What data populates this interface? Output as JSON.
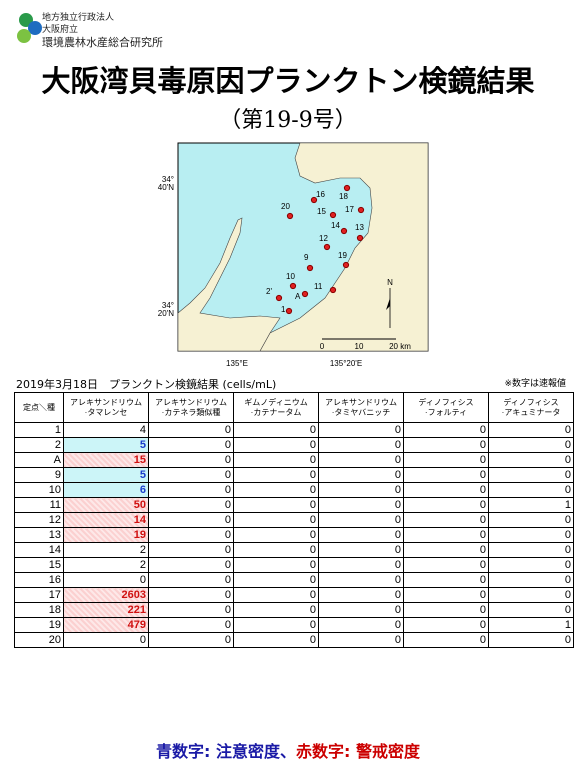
{
  "header": {
    "org": [
      "地方独立行政法人",
      "大阪府立",
      "環境農林水産総合研究所"
    ],
    "title": "大阪湾貝毒原因プランクトン検鏡結果",
    "subtitle": "（第19-9号）"
  },
  "map": {
    "stations": [
      "1",
      "2'",
      "A",
      "10",
      "11",
      "9",
      "19",
      "12",
      "14",
      "13",
      "15",
      "17",
      "18",
      "16",
      "20"
    ],
    "lat_labels": [
      [
        "34°",
        "40'N"
      ],
      [
        "34°",
        "20'N"
      ]
    ],
    "lon_labels": [
      "135°E",
      "135°20'E"
    ],
    "scale": [
      "0",
      "10",
      "20 km"
    ],
    "north": "N"
  },
  "table": {
    "caption": "2019年3月18日　プランクトン検鏡結果 (cells/mL)",
    "note": "※数字は速報値",
    "corner": "定点＼種",
    "headers": [
      [
        "アレキサンドリウム",
        "·タマレンセ"
      ],
      [
        "アレキサンドリウム",
        "·カテネラ類似種"
      ],
      [
        "ギムノディニウム",
        "·カテナータム"
      ],
      [
        "アレキサンドリウム",
        "·タミヤバニッチ"
      ],
      [
        "ディノフィシス",
        "·フォルティ"
      ],
      [
        "ディノフィシス",
        "·アキュミナータ"
      ]
    ],
    "rows": [
      [
        "1",
        4,
        0,
        0,
        0,
        0,
        0
      ],
      [
        "2",
        5,
        0,
        0,
        0,
        0,
        0
      ],
      [
        "A",
        15,
        0,
        0,
        0,
        0,
        0
      ],
      [
        "9",
        5,
        0,
        0,
        0,
        0,
        0
      ],
      [
        "10",
        6,
        0,
        0,
        0,
        0,
        0
      ],
      [
        "11",
        50,
        0,
        0,
        0,
        0,
        1
      ],
      [
        "12",
        14,
        0,
        0,
        0,
        0,
        0
      ],
      [
        "13",
        19,
        0,
        0,
        0,
        0,
        0
      ],
      [
        "14",
        2,
        0,
        0,
        0,
        0,
        0
      ],
      [
        "15",
        2,
        0,
        0,
        0,
        0,
        0
      ],
      [
        "16",
        0,
        0,
        0,
        0,
        0,
        0
      ],
      [
        "17",
        2603,
        0,
        0,
        0,
        0,
        0
      ],
      [
        "18",
        221,
        0,
        0,
        0,
        0,
        0
      ],
      [
        "19",
        479,
        0,
        0,
        0,
        0,
        1
      ],
      [
        "20",
        0,
        0,
        0,
        0,
        0,
        0
      ]
    ],
    "highlight": [
      null,
      "blue",
      "red",
      "blue",
      "blue",
      "red",
      "red",
      "red",
      null,
      null,
      null,
      "red",
      "red",
      "red",
      null
    ]
  },
  "footer": [
    {
      "text": "青数字: 注意密度",
      "color": "#1a1aa6"
    },
    {
      "text": "、",
      "color": "#1a1aa6"
    },
    {
      "text": "赤数字: 警戒密度",
      "color": "#cc0000"
    }
  ]
}
